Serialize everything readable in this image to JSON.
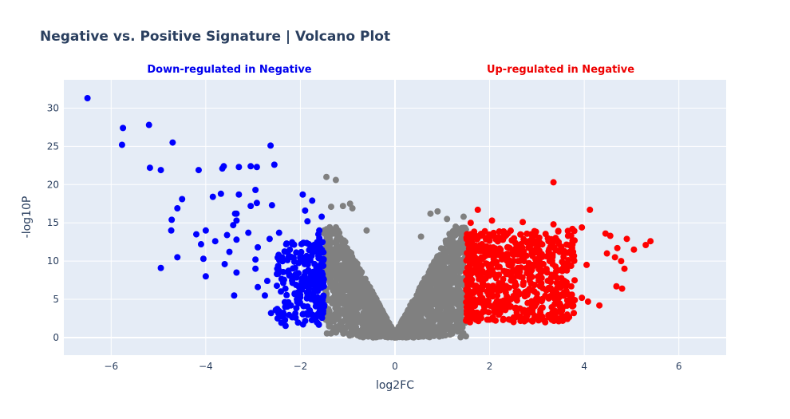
{
  "chart_data": {
    "type": "scatter",
    "title": "Negative vs. Positive Signature | Volcano Plot",
    "xlabel": "log2FC",
    "ylabel": "-log10P",
    "xlim": [
      -7,
      7
    ],
    "ylim": [
      -2.3,
      33.7
    ],
    "x_ticks": [
      -6,
      -4,
      -2,
      0,
      2,
      4,
      6
    ],
    "y_ticks": [
      0,
      5,
      10,
      15,
      20,
      25,
      30
    ],
    "x_tick_labels": [
      "−6",
      "−4",
      "−2",
      "0",
      "2",
      "4",
      "6"
    ],
    "y_tick_labels": [
      "0",
      "5",
      "10",
      "15",
      "20",
      "25",
      "30"
    ],
    "grid": true,
    "background": "#e5ecf6",
    "annotations": [
      {
        "text": "Down-regulated in Negative",
        "color": "#0000ee",
        "x": -3.5
      },
      {
        "text": "Up-regulated in Negative",
        "color": "#ee0000",
        "x": 3.5
      }
    ],
    "series": [
      {
        "role": "down",
        "color": "#0000ff",
        "points": [
          [
            -6.5,
            31.3
          ],
          [
            -5.75,
            27.4
          ],
          [
            -5.77,
            25.2
          ],
          [
            -5.2,
            27.8
          ],
          [
            -5.18,
            22.2
          ],
          [
            -4.95,
            21.9
          ],
          [
            -4.7,
            25.5
          ],
          [
            -4.15,
            21.9
          ],
          [
            -3.65,
            22.1
          ],
          [
            -3.62,
            22.4
          ],
          [
            -3.3,
            22.3
          ],
          [
            -3.05,
            22.4
          ],
          [
            -2.92,
            22.3
          ],
          [
            -2.63,
            25.1
          ],
          [
            -2.55,
            22.6
          ],
          [
            -4.5,
            18.1
          ],
          [
            -4.6,
            16.9
          ],
          [
            -4.72,
            15.4
          ],
          [
            -4.73,
            14.0
          ],
          [
            -3.85,
            18.4
          ],
          [
            -3.68,
            18.8
          ],
          [
            -3.3,
            18.7
          ],
          [
            -2.95,
            19.3
          ],
          [
            -2.92,
            17.6
          ],
          [
            -3.05,
            17.2
          ],
          [
            -3.35,
            16.2
          ],
          [
            -3.38,
            16.2
          ],
          [
            -2.6,
            17.3
          ],
          [
            -4.6,
            10.5
          ],
          [
            -4.95,
            9.1
          ],
          [
            -4.0,
            8.0
          ],
          [
            -4.05,
            10.3
          ],
          [
            -4.2,
            13.5
          ],
          [
            -4.0,
            14.0
          ],
          [
            -4.1,
            12.2
          ],
          [
            -3.8,
            12.6
          ],
          [
            -3.55,
            13.4
          ],
          [
            -3.42,
            14.7
          ],
          [
            -3.35,
            15.3
          ],
          [
            -3.1,
            13.7
          ],
          [
            -3.35,
            12.8
          ],
          [
            -3.5,
            11.2
          ],
          [
            -3.6,
            9.6
          ],
          [
            -3.35,
            8.5
          ],
          [
            -3.4,
            5.5
          ],
          [
            -2.95,
            10.2
          ],
          [
            -2.9,
            11.8
          ],
          [
            -2.65,
            12.9
          ],
          [
            -2.45,
            13.7
          ],
          [
            -2.3,
            12.2
          ],
          [
            -1.95,
            18.7
          ],
          [
            -1.9,
            16.6
          ],
          [
            -1.85,
            15.2
          ],
          [
            -1.75,
            17.9
          ],
          [
            -1.7,
            11.9
          ],
          [
            -2.9,
            6.6
          ],
          [
            -2.95,
            9.0
          ],
          [
            -2.75,
            5.5
          ],
          [
            -2.7,
            7.4
          ],
          [
            -2.62,
            3.2
          ],
          [
            -2.52,
            3.6
          ],
          [
            -2.35,
            3.0
          ],
          [
            -2.2,
            4.2
          ],
          [
            -2.1,
            2.6
          ],
          [
            -1.75,
            3.0
          ],
          [
            -1.65,
            2.0
          ],
          [
            -1.62,
            13.5
          ],
          [
            -1.55,
            15.8
          ],
          [
            -1.6,
            14.0
          ],
          [
            -1.6,
            13.0
          ]
        ],
        "cluster": {
          "x_range": [
            -2.5,
            -1.5
          ],
          "y_range": [
            1.5,
            12.5
          ],
          "count": 240
        }
      },
      {
        "role": "not-significant",
        "color": "#808080",
        "points": [
          [
            -1.45,
            21.0
          ],
          [
            -1.25,
            20.6
          ],
          [
            -1.35,
            17.1
          ],
          [
            -1.1,
            17.2
          ],
          [
            -0.95,
            17.5
          ],
          [
            -0.9,
            16.9
          ],
          [
            0.9,
            16.5
          ],
          [
            0.75,
            16.2
          ],
          [
            1.1,
            15.5
          ],
          [
            1.45,
            15.8
          ],
          [
            -0.6,
            14.0
          ],
          [
            0.55,
            13.2
          ]
        ],
        "cluster": {
          "x_range": [
            -1.5,
            1.5
          ],
          "y_max": 14.5,
          "count": 2100
        }
      },
      {
        "role": "up",
        "color": "#ff0000",
        "points": [
          [
            3.35,
            20.3
          ],
          [
            4.12,
            16.7
          ],
          [
            1.75,
            16.7
          ],
          [
            2.05,
            15.3
          ],
          [
            2.7,
            15.1
          ],
          [
            3.35,
            14.8
          ],
          [
            3.75,
            14.2
          ],
          [
            3.95,
            14.4
          ],
          [
            4.45,
            13.6
          ],
          [
            4.55,
            13.3
          ],
          [
            4.9,
            12.9
          ],
          [
            5.4,
            12.6
          ],
          [
            5.3,
            12.1
          ],
          [
            5.05,
            11.5
          ],
          [
            4.7,
            11.7
          ],
          [
            4.48,
            11.0
          ],
          [
            4.65,
            10.5
          ],
          [
            4.78,
            10.0
          ],
          [
            4.85,
            9.0
          ],
          [
            4.05,
            9.5
          ],
          [
            4.68,
            6.7
          ],
          [
            4.8,
            6.4
          ],
          [
            4.32,
            4.2
          ],
          [
            4.08,
            4.7
          ],
          [
            3.95,
            5.2
          ],
          [
            3.8,
            4.9
          ],
          [
            1.6,
            15.0
          ],
          [
            1.9,
            13.9
          ],
          [
            2.3,
            13.7
          ]
        ],
        "cluster": {
          "x_range": [
            1.5,
            3.8
          ],
          "y_range": [
            2.0,
            14.0
          ],
          "count": 700
        }
      }
    ]
  }
}
